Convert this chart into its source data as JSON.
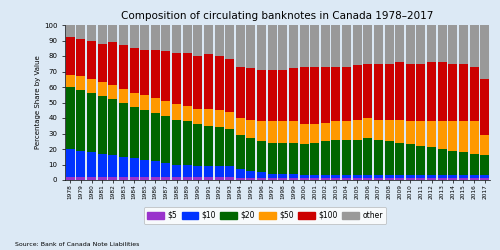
{
  "years": [
    1978,
    1979,
    1980,
    1981,
    1982,
    1983,
    1984,
    1985,
    1986,
    1987,
    1988,
    1989,
    1990,
    1991,
    1992,
    1993,
    1994,
    1995,
    1996,
    1997,
    1998,
    1999,
    2000,
    2001,
    2002,
    2003,
    2004,
    2005,
    2006,
    2007,
    2008,
    2009,
    2010,
    2011,
    2012,
    2013,
    2014,
    2015,
    2016,
    2017
  ],
  "d5": [
    2,
    2,
    2,
    2,
    2,
    2,
    2,
    2,
    2,
    2,
    2,
    2,
    2,
    2,
    2,
    2,
    1,
    1,
    1,
    1,
    1,
    1,
    1,
    1,
    1,
    1,
    1,
    1,
    1,
    1,
    1,
    1,
    1,
    1,
    1,
    1,
    1,
    1,
    1,
    1
  ],
  "d10": [
    18,
    17,
    16,
    15,
    14,
    13,
    12,
    11,
    10,
    9,
    8,
    8,
    7,
    7,
    7,
    7,
    6,
    5,
    4,
    3,
    3,
    3,
    2,
    2,
    2,
    2,
    2,
    2,
    2,
    2,
    2,
    2,
    2,
    2,
    2,
    2,
    2,
    2,
    2,
    2
  ],
  "d20": [
    40,
    39,
    38,
    37,
    36,
    35,
    33,
    32,
    31,
    30,
    29,
    28,
    27,
    26,
    25,
    24,
    22,
    21,
    20,
    20,
    20,
    20,
    20,
    21,
    22,
    23,
    23,
    23,
    24,
    23,
    22,
    21,
    20,
    19,
    18,
    17,
    16,
    15,
    14,
    13
  ],
  "d50": [
    8,
    9,
    9,
    9,
    9,
    9,
    9,
    10,
    10,
    10,
    10,
    10,
    10,
    11,
    11,
    11,
    11,
    12,
    13,
    14,
    14,
    14,
    13,
    12,
    12,
    12,
    12,
    13,
    13,
    13,
    14,
    15,
    15,
    16,
    17,
    18,
    19,
    20,
    21,
    13
  ],
  "d100": [
    24,
    24,
    25,
    25,
    28,
    28,
    29,
    29,
    31,
    32,
    33,
    34,
    34,
    35,
    35,
    34,
    33,
    33,
    33,
    33,
    33,
    34,
    37,
    37,
    36,
    35,
    35,
    35,
    35,
    36,
    36,
    37,
    37,
    37,
    38,
    38,
    37,
    37,
    35,
    36
  ],
  "other": [
    8,
    9,
    10,
    12,
    11,
    13,
    15,
    16,
    16,
    17,
    18,
    18,
    20,
    19,
    20,
    22,
    27,
    28,
    29,
    29,
    29,
    28,
    27,
    27,
    27,
    27,
    27,
    26,
    25,
    25,
    25,
    24,
    25,
    25,
    24,
    24,
    25,
    25,
    27,
    35
  ],
  "colors": {
    "d5": "#9933cc",
    "d10": "#0033ff",
    "d20": "#006600",
    "d50": "#ff9900",
    "d100": "#cc0000",
    "other": "#999999"
  },
  "labels": [
    "$5",
    "$10",
    "$20",
    "$50",
    "$100",
    "other"
  ],
  "title": "Composition of circulating banknotes in Canada 1978–2017",
  "ylabel": "Percentage Share by Value",
  "source": "Source: Bank of Canada Note Liabilities",
  "ylim": [
    0,
    100
  ],
  "yticks": [
    0,
    10,
    20,
    30,
    40,
    50,
    60,
    70,
    80,
    90,
    100
  ],
  "bg_color": "#dce9f5",
  "bar_width": 0.85
}
